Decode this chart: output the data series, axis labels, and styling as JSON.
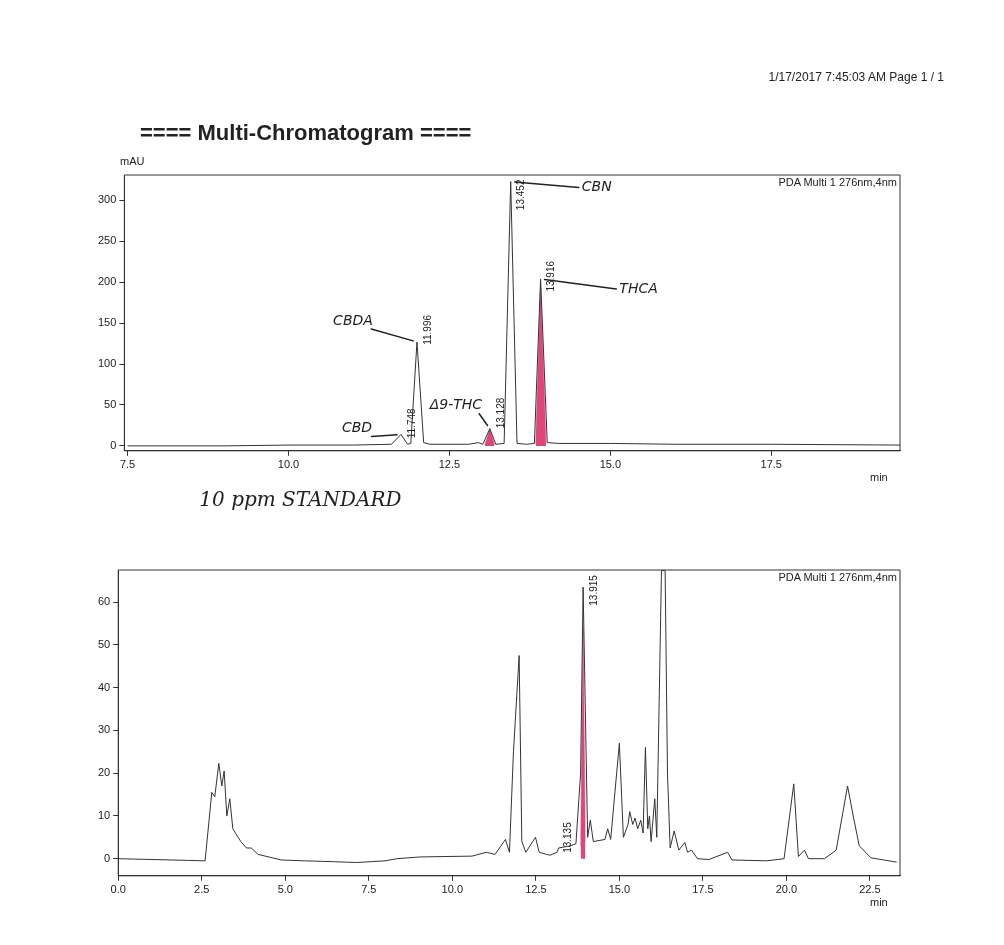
{
  "chart_data": [
    {
      "type": "line",
      "title": "==== Multi-Chromatogram ====",
      "ylabel": "mAU",
      "xlabel": "min",
      "xlim": [
        7.45,
        19.5
      ],
      "ylim": [
        -6,
        331
      ],
      "xticks": [
        {
          "value": 7.5,
          "label": "7.5"
        },
        {
          "value": 10,
          "label": "10.0"
        },
        {
          "value": 12.5,
          "label": "12.5"
        },
        {
          "value": 15,
          "label": "15.0"
        },
        {
          "value": 17.5,
          "label": "17.5"
        }
      ],
      "yticks": [
        0,
        50,
        100,
        150,
        200,
        250,
        300
      ],
      "grid": false,
      "legend": false,
      "marker": "none",
      "series": [
        {
          "color": "#333333",
          "x": [
            7.5,
            9,
            10,
            11,
            11.6,
            11.748,
            11.85,
            11.9,
            11.996,
            12.1,
            12.2,
            12.8,
            12.95,
            13.02,
            13.128,
            13.22,
            13.35,
            13.452,
            13.55,
            13.7,
            13.82,
            13.916,
            14.02,
            14.2,
            15,
            16,
            17.5,
            19.5
          ],
          "values": [
            0,
            0,
            1,
            1,
            2,
            14,
            2,
            3,
            127,
            4,
            2,
            2,
            4,
            2,
            21,
            2,
            3,
            323,
            3,
            2,
            3,
            204,
            4,
            3,
            3,
            2,
            2,
            1
          ]
        },
        {
          "type": "area",
          "color": "#e0457b",
          "x": [
            13.05,
            13.128,
            13.2,
            13.5,
            13.84,
            13.916,
            14.0
          ],
          "values": [
            1,
            21,
            1,
            null,
            2,
            195,
            3
          ]
        }
      ],
      "annotations": [
        "1/17/2017 7:45:03 AM  Page 1 / 1",
        "PDA Multi 1 276nm,4nm",
        "10 ppm STANDARD",
        {
          "text": "11.748",
          "x": 11.748,
          "y": 14
        },
        {
          "text": "11.996",
          "x": 11.996,
          "y": 127
        },
        {
          "text": "13.128",
          "x": 13.128,
          "y": 21
        },
        {
          "text": "13.452",
          "x": 13.452,
          "y": 323
        },
        {
          "text": "13.916",
          "x": 13.916,
          "y": 204
        },
        {
          "text": "CBD",
          "x": 11.748,
          "y": 14
        },
        {
          "text": "CBDA",
          "x": 11.996,
          "y": 127
        },
        {
          "text": "Δ9-THC",
          "x": 13.128,
          "y": 21
        },
        {
          "text": "CBN",
          "x": 13.452,
          "y": 323
        },
        {
          "text": "THCA",
          "x": 13.916,
          "y": 204
        }
      ]
    },
    {
      "type": "line",
      "xlabel": "min",
      "xlim": [
        0,
        23.4
      ],
      "ylim": [
        -4,
        67.5
      ],
      "xticks": [
        {
          "value": 0,
          "label": "0.0"
        },
        {
          "value": 2.5,
          "label": "2.5"
        },
        {
          "value": 5,
          "label": "5.0"
        },
        {
          "value": 7.5,
          "label": "7.5"
        },
        {
          "value": 10,
          "label": "10.0"
        },
        {
          "value": 12.5,
          "label": "12.5"
        },
        {
          "value": 15,
          "label": "15.0"
        },
        {
          "value": 17.5,
          "label": "17.5"
        },
        {
          "value": 20,
          "label": "20.0"
        },
        {
          "value": 22.5,
          "label": "22.5"
        }
      ],
      "yticks": [
        0,
        10,
        20,
        30,
        40,
        50,
        60
      ],
      "grid": false,
      "legend": false,
      "marker": "none",
      "series": [
        {
          "color": "#333333",
          "x": [
            0,
            2.11,
            2.6,
            2.8,
            2.89,
            3.01,
            3.1,
            3.17,
            3.25,
            3.34,
            3.43,
            3.67,
            3.84,
            3.98,
            4.19,
            4.88,
            5.57,
            6.44,
            7.13,
            7.99,
            8.34,
            9.03,
            9.72,
            10.59,
            11.02,
            11.28,
            11.59,
            11.71,
            11.83,
            12.0,
            12.08,
            12.2,
            12.49,
            12.6,
            12.92,
            13.135,
            13.18,
            13.53,
            13.7,
            13.84,
            13.915,
            14.05,
            14.13,
            14.22,
            14.57,
            14.65,
            14.74,
            15.0,
            15.12,
            15.26,
            15.31,
            15.4,
            15.47,
            15.55,
            15.64,
            15.71,
            15.78,
            15.85,
            15.9,
            15.95,
            16.06,
            16.12,
            16.26,
            16.37,
            16.44,
            16.52,
            16.64,
            16.78,
            16.96,
            17.04,
            17.16,
            17.34,
            17.68,
            18.24,
            18.37,
            19.41,
            19.93,
            20.22,
            20.36,
            20.54,
            20.66,
            21.14,
            21.49,
            21.83,
            22.0,
            22.18,
            22.53,
            23.3
          ],
          "values": [
            0,
            -0.4,
            -0.5,
            15.5,
            14.5,
            22.3,
            17,
            20.5,
            10,
            14,
            7,
            4,
            2.5,
            2.5,
            1,
            -0.3,
            -0.5,
            -0.7,
            -0.9,
            -0.5,
            0,
            0.4,
            0.5,
            0.6,
            1.5,
            1,
            4.5,
            1.5,
            25,
            47.5,
            4,
            1.5,
            5,
            1.5,
            0.8,
            1.5,
            2.5,
            3,
            3.5,
            20,
            63.5,
            5,
            9,
            4,
            4.5,
            7,
            4.5,
            27,
            5,
            8,
            11,
            8,
            9.5,
            7,
            9,
            6,
            26,
            7,
            10,
            4,
            14,
            5,
            67.4,
            67.4,
            20,
            2.5,
            6.5,
            2,
            3.8,
            1.5,
            2,
            0,
            -0.2,
            1.5,
            -0.3,
            -0.5,
            0,
            17.5,
            0.5,
            2,
            0,
            0,
            2,
            17,
            10,
            3,
            0.2,
            -0.8
          ]
        },
        {
          "type": "area",
          "color": "#e0457b",
          "x": [
            13.84,
            13.915,
            13.98
          ],
          "values": [
            3,
            54,
            4
          ]
        }
      ],
      "annotations": [
        "PDA Multi 1 276nm,4nm",
        {
          "text": "13.135",
          "x": 13.135,
          "y": 1.5
        },
        {
          "text": "13.915",
          "x": 13.915,
          "y": 63.5
        }
      ]
    }
  ]
}
